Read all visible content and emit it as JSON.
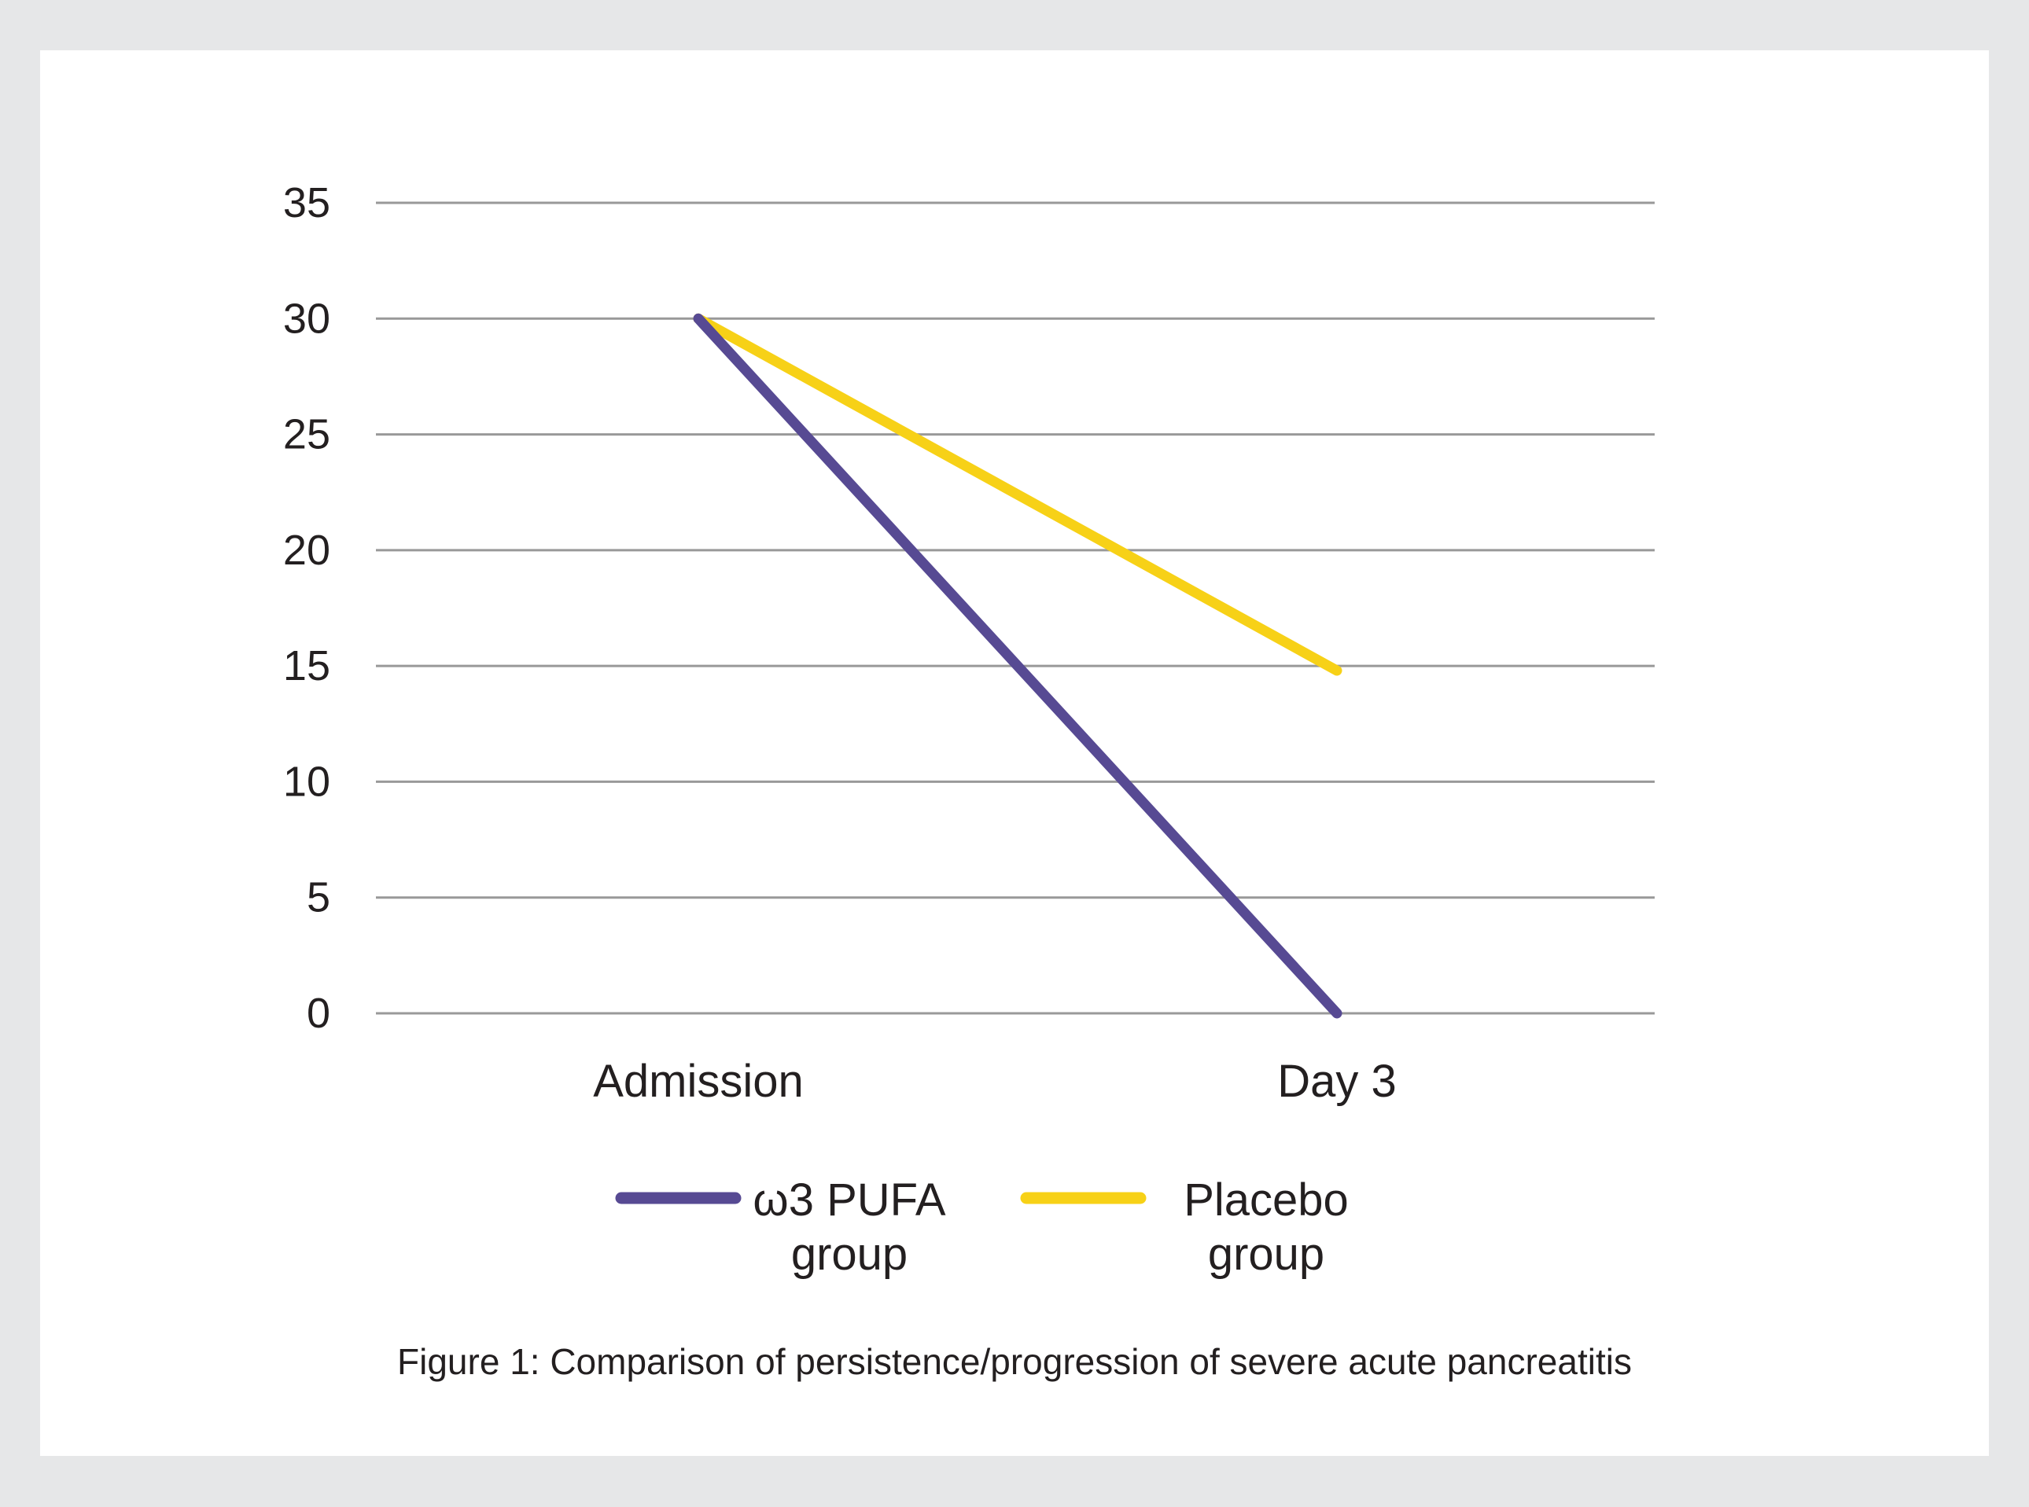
{
  "chart_data": {
    "type": "line",
    "categories": [
      "Admission",
      "Day 3"
    ],
    "series": [
      {
        "name": "ω3 PUFA group",
        "line1": "ω3 PUFA",
        "line2": "group",
        "values": [
          30,
          0
        ],
        "color": "#574a93"
      },
      {
        "name": "Placebo group",
        "line1": "Placebo",
        "line2": "group",
        "values": [
          30,
          14.8
        ],
        "color": "#f7d117"
      }
    ],
    "ylim": [
      0,
      35
    ],
    "yticks": [
      "0",
      "5",
      "10",
      "15",
      "20",
      "25",
      "30",
      "35"
    ],
    "grid": true,
    "gridline_color": "#999999",
    "legend_position": "bottom",
    "title": "",
    "xlabel": "",
    "ylabel": ""
  },
  "caption": "Figure 1: Comparison of persistence/progression of severe acute pancreatitis"
}
